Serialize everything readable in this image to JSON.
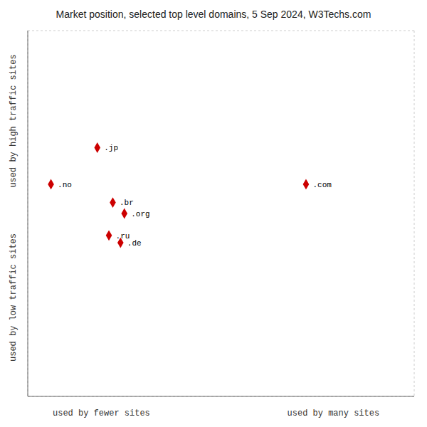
{
  "chart_data": {
    "type": "scatter",
    "title": "Market position, selected top level domains, 5 Sep 2024, W3Techs.com",
    "xlabel": [
      "used by fewer sites",
      "used by many sites"
    ],
    "ylabel": [
      "used by low traffic sites",
      "used by high traffic sites"
    ],
    "labels": [
      ".jp",
      ".no",
      ".com",
      ".br",
      ".org",
      ".ru",
      ".de"
    ],
    "x": [
      18,
      6,
      72,
      22,
      25,
      21,
      24
    ],
    "y": [
      68,
      58,
      58,
      53,
      50,
      44,
      42
    ],
    "xlim": [
      0,
      100
    ],
    "ylim": [
      0,
      100
    ],
    "xticks": [
      0,
      20,
      40,
      60,
      80,
      100
    ],
    "yticks": [
      0,
      20,
      40,
      60,
      80,
      100
    ],
    "grid": true,
    "tick_labels": false,
    "color": "#cc0000",
    "marker": "diamond"
  }
}
